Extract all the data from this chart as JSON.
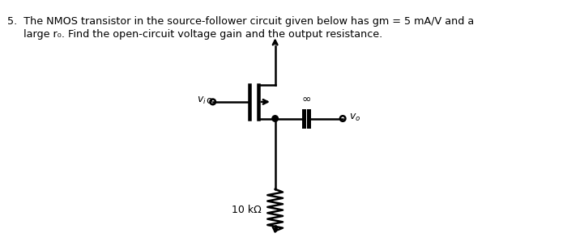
{
  "bg_color": "#ffffff",
  "text_color": "#000000",
  "circuit_color": "#000000",
  "title_line1": "5.  The NMOS transistor in the source-follower circuit given below has gm = 5 mA/V and a",
  "title_line2": "     large r₀. Find the open-circuit voltage gain and the output resistance.",
  "resistor_label": "10 kΩ",
  "infinity_label": "∞",
  "vi_label": "$v_i$",
  "vo_label": "$v_o$"
}
